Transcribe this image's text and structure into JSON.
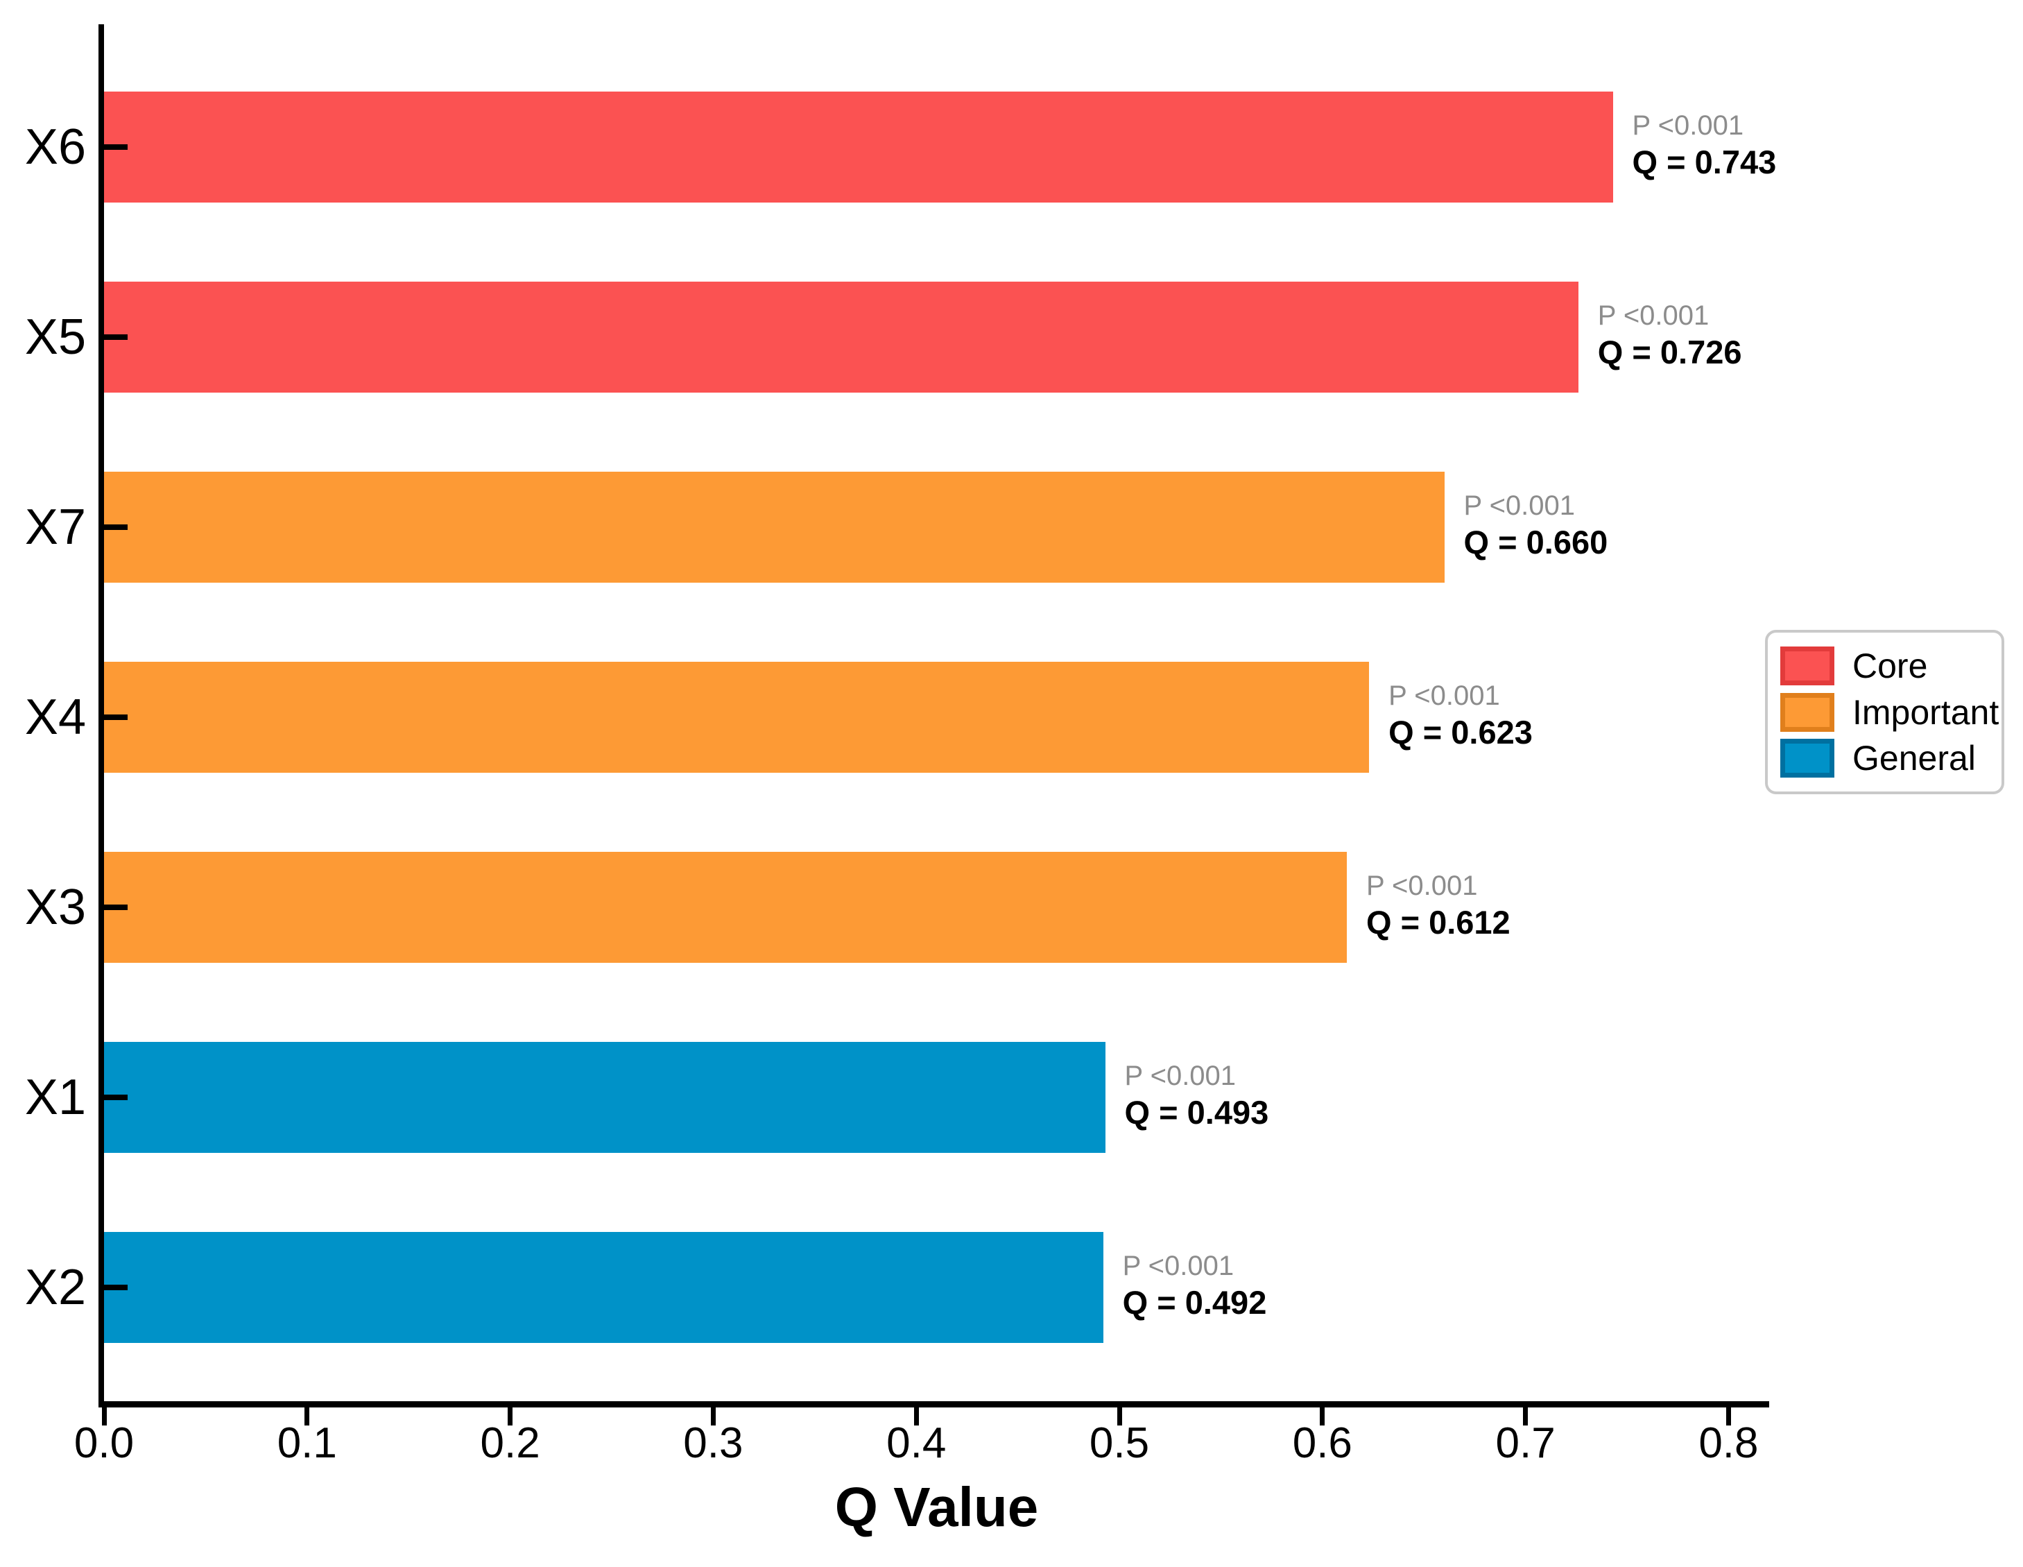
{
  "chart_data": {
    "type": "bar",
    "orientation": "horizontal",
    "title": "",
    "xlabel": "Q Value",
    "ylabel": "",
    "grid": false,
    "legend_position": "center-right",
    "xlim": [
      0,
      0.82
    ],
    "x_ticks": [
      "0.0",
      "0.1",
      "0.2",
      "0.3",
      "0.4",
      "0.5",
      "0.6",
      "0.7",
      "0.8"
    ],
    "categories": [
      "X6",
      "X5",
      "X7",
      "X4",
      "X3",
      "X1",
      "X2"
    ],
    "series": [
      {
        "name": "Q Value",
        "values": [
          0.743,
          0.726,
          0.66,
          0.623,
          0.612,
          0.493,
          0.492
        ]
      }
    ],
    "bars": [
      {
        "category": "X6",
        "value": 0.743,
        "group": "Core",
        "p_label": "P <0.001",
        "q_label": "Q = 0.743"
      },
      {
        "category": "X5",
        "value": 0.726,
        "group": "Core",
        "p_label": "P <0.001",
        "q_label": "Q = 0.726"
      },
      {
        "category": "X7",
        "value": 0.66,
        "group": "Important",
        "p_label": "P <0.001",
        "q_label": "Q = 0.660"
      },
      {
        "category": "X4",
        "value": 0.623,
        "group": "Important",
        "p_label": "P <0.001",
        "q_label": "Q = 0.623"
      },
      {
        "category": "X3",
        "value": 0.612,
        "group": "Important",
        "p_label": "P <0.001",
        "q_label": "Q = 0.612"
      },
      {
        "category": "X1",
        "value": 0.493,
        "group": "General",
        "p_label": "P <0.001",
        "q_label": "Q = 0.493"
      },
      {
        "category": "X2",
        "value": 0.492,
        "group": "General",
        "p_label": "P <0.001",
        "q_label": "Q = 0.492"
      }
    ],
    "legend": [
      {
        "label": "Core",
        "color": "#FB5252",
        "border": "#E23B3B"
      },
      {
        "label": "Important",
        "color": "#FD9A35",
        "border": "#E07F1C"
      },
      {
        "label": "General",
        "color": "#0092C8",
        "border": "#0070A0"
      }
    ],
    "colors": {
      "p_text": "#8C8C8C",
      "q_text": "#000000",
      "axis": "#000000",
      "background": "#FFFFFF"
    }
  }
}
